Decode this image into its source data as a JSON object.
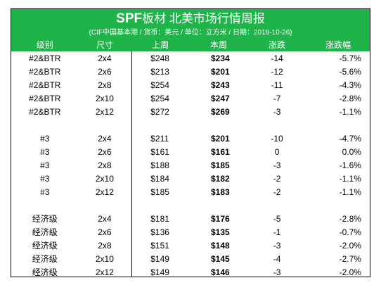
{
  "header": {
    "title_brand": "SPF",
    "title_rest": "板材 北美市场行情周报",
    "subtitle": "(CIF中国基本港 / 货币：美元 / 单位：立方米 / 日期：2018-10-26)",
    "background_color": "#1fb44a",
    "text_color": "#ffffff"
  },
  "columns": {
    "grade": "级别",
    "size": "尺寸",
    "last_week": "上周",
    "this_week": "本周",
    "change": "涨跌",
    "change_pct": "涨跌幅"
  },
  "groups": [
    {
      "rows": [
        {
          "grade": "#2&BTR",
          "size": "2x4",
          "last_week": "$248",
          "this_week": "$234",
          "change": "-14",
          "change_pct": "-5.7%"
        },
        {
          "grade": "#2&BTR",
          "size": "2x6",
          "last_week": "$213",
          "this_week": "$201",
          "change": "-12",
          "change_pct": "-5.6%"
        },
        {
          "grade": "#2&BTR",
          "size": "2x8",
          "last_week": "$254",
          "this_week": "$243",
          "change": "-11",
          "change_pct": "-4.3%"
        },
        {
          "grade": "#2&BTR",
          "size": "2x10",
          "last_week": "$254",
          "this_week": "$247",
          "change": "-7",
          "change_pct": "-2.8%"
        },
        {
          "grade": "#2&BTR",
          "size": "2x12",
          "last_week": "$272",
          "this_week": "$269",
          "change": "-3",
          "change_pct": "-1.1%"
        }
      ]
    },
    {
      "rows": [
        {
          "grade": "#3",
          "size": "2x4",
          "last_week": "$211",
          "this_week": "$201",
          "change": "-10",
          "change_pct": "-4.7%"
        },
        {
          "grade": "#3",
          "size": "2x6",
          "last_week": "$161",
          "this_week": "$161",
          "change": "0",
          "change_pct": "0.0%"
        },
        {
          "grade": "#3",
          "size": "2x8",
          "last_week": "$188",
          "this_week": "$185",
          "change": "-3",
          "change_pct": "-1.6%"
        },
        {
          "grade": "#3",
          "size": "2x10",
          "last_week": "$184",
          "this_week": "$182",
          "change": "-2",
          "change_pct": "-1.1%"
        },
        {
          "grade": "#3",
          "size": "2x12",
          "last_week": "$185",
          "this_week": "$183",
          "change": "-2",
          "change_pct": "-1.1%"
        }
      ]
    },
    {
      "rows": [
        {
          "grade": "经济级",
          "size": "2x4",
          "last_week": "$181",
          "this_week": "$176",
          "change": "-5",
          "change_pct": "-2.8%"
        },
        {
          "grade": "经济级",
          "size": "2x6",
          "last_week": "$136",
          "this_week": "$135",
          "change": "-1",
          "change_pct": "-0.7%"
        },
        {
          "grade": "经济级",
          "size": "2x8",
          "last_week": "$151",
          "this_week": "$148",
          "change": "-3",
          "change_pct": "-2.0%"
        },
        {
          "grade": "经济级",
          "size": "2x10",
          "last_week": "$149",
          "this_week": "$145",
          "change": "-4",
          "change_pct": "-2.7%"
        },
        {
          "grade": "经济级",
          "size": "2x12",
          "last_week": "$149",
          "this_week": "$146",
          "change": "-3",
          "change_pct": "-2.0%"
        }
      ]
    }
  ]
}
